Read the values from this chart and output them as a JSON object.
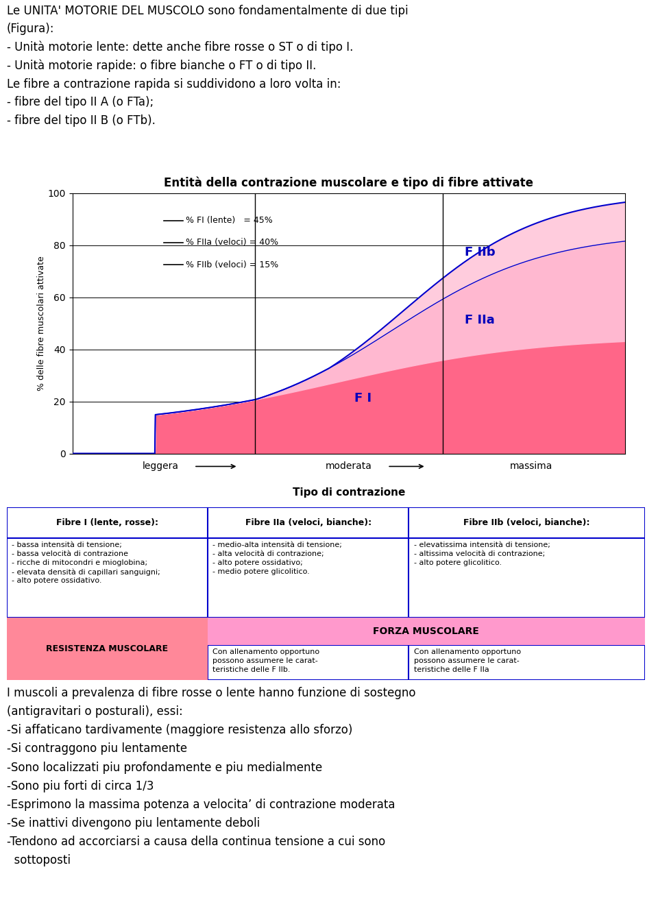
{
  "title_text1": "Le UNITA' MOTORIE DEL MUSCOLO sono fondamentalmente di due tipi\n(Figura):\n- Unità motorie lente: dette anche fibre rosse o ST o di tipo I.\n- Unità motorie rapide: o fibre bianche o FT o di tipo II.\nLe fibre a contrazione rapida si suddividono a loro volta in:\n- fibre del tipo II A (o FTa);\n- fibre del tipo II B (o FTb).",
  "chart_title": "Entità della contrazione muscolare e tipo di fibre attivate",
  "ylabel": "% delle fibre muscolari attivate",
  "xlabel": "Tipo di contrazione",
  "legend_line1": "% FI (lente)   = 45%",
  "legend_line2": "% FIIa (veloci) = 40%",
  "legend_line3": "% FIIb (veloci) = 15%",
  "label_FI": "F I",
  "label_FIIa": "F IIa",
  "label_FIIb": "F IIb",
  "color_red_fill": "#FF6688",
  "color_pink_fill": "#FFB8D0",
  "color_pink_fill2": "#FFCCDD",
  "color_blue_line": "#0000CC",
  "color_blue_label": "#0000BB",
  "table_border_color": "#0000CC",
  "resistenza_bg": "#FF8899",
  "forza_bg": "#FF99CC",
  "bottom_text": "I muscoli a prevalenza di fibre rosse o lente hanno funzione di sostegno\n(antigravitari o posturali), essi:\n-Si affaticano tardivamente (maggiore resistenza allo sforzo)\n-Si contraggono piu lentamente\n-Sono localizzati piu profondamente e piu medialmente\n-Sono piu forti di circa 1/3\n-Esprimono la massima potenza a velocita’ di contrazione moderata\n-Se inattivi divengono piu lentamente deboli\n-Tendono ad accorciarsi a causa della continua tensione a cui sono\n  sottoposti",
  "table_col1_header": "Fibre I (lente, rosse):",
  "table_col2_header": "Fibre IIa (veloci, bianche):",
  "table_col3_header": "Fibre IIb (veloci, bianche):",
  "table_col1_body": "- bassa intensità di tensione;\n- bassa velocità di contrazione\n- ricche di mitocondri e mioglobina;\n- elevata densità di capillari sanguigni;\n- alto potere ossidativo.",
  "table_col2_body": "- medio-alta intensità di tensione;\n- alta velocità di contrazione;\n- alto potere ossidativo;\n- medio potere glicolitico.",
  "table_col3_body": "- elevatissima intensità di tensione;\n- altissima velocità di contrazione;\n- alto potere glicolitico.",
  "table_resistenza": "RESISTENZA MUSCOLARE",
  "table_forza": "FORZA MUSCOLARE",
  "table_col2_bottom": "Con allenamento opportuno\npossono assumere le carat-\nteristiche delle F IIb.",
  "table_col3_bottom": "Con allenamento opportuno\npossono assumere le carat-\nteristiche delle F IIa"
}
